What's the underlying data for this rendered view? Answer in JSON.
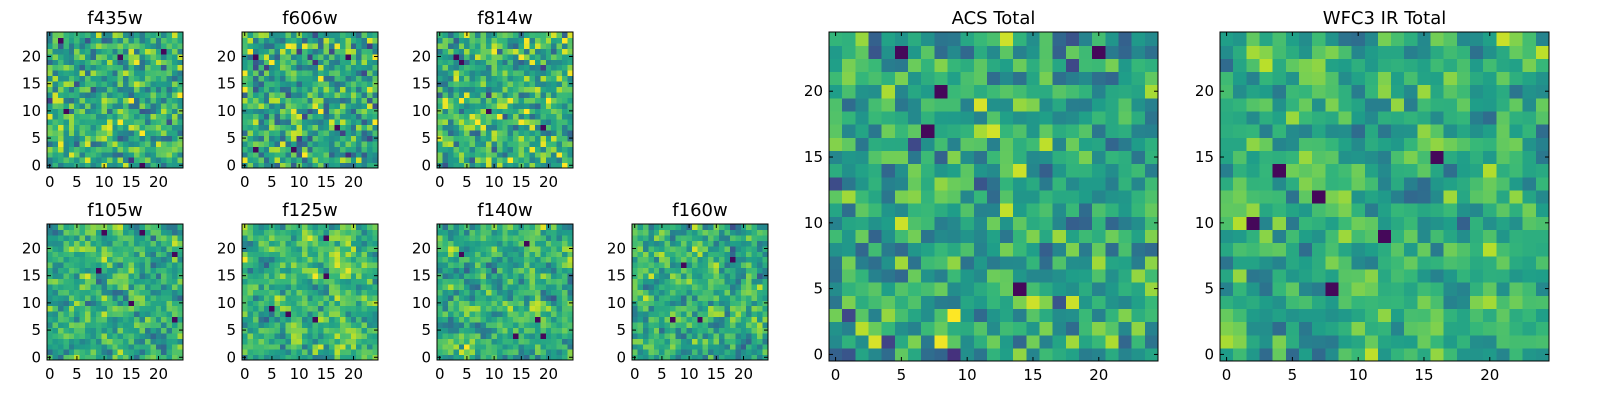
{
  "chart_data": {
    "type": "heatmap",
    "colormap": "viridis",
    "grid": false,
    "panels": [
      {
        "title": "f435w",
        "size": 25,
        "ylim": [
          0,
          24
        ],
        "xticks": [
          0,
          5,
          10,
          15,
          20
        ],
        "yticks": [
          0,
          5,
          10,
          15,
          20
        ],
        "seed": 11,
        "smooth": 0,
        "bias": 0.62,
        "contrast": 0.22
      },
      {
        "title": "f606w",
        "size": 25,
        "ylim": [
          0,
          24
        ],
        "xticks": [
          0,
          5,
          10,
          15,
          20
        ],
        "yticks": [
          0,
          5,
          10,
          15,
          20
        ],
        "seed": 23,
        "smooth": 0,
        "bias": 0.6,
        "contrast": 0.24
      },
      {
        "title": "f814w",
        "size": 25,
        "ylim": [
          0,
          24
        ],
        "xticks": [
          0,
          5,
          10,
          15,
          20
        ],
        "yticks": [
          0,
          5,
          10,
          15,
          20
        ],
        "seed": 37,
        "smooth": 0,
        "bias": 0.64,
        "contrast": 0.22
      },
      {
        "title": "f105w",
        "size": 25,
        "ylim": [
          0,
          24
        ],
        "xticks": [
          0,
          5,
          10,
          15,
          20
        ],
        "yticks": [
          0,
          5,
          10,
          15,
          20
        ],
        "seed": 41,
        "smooth": 1,
        "bias": 0.62,
        "contrast": 0.26
      },
      {
        "title": "f125w",
        "size": 25,
        "ylim": [
          0,
          24
        ],
        "xticks": [
          0,
          5,
          10,
          15,
          20
        ],
        "yticks": [
          0,
          5,
          10,
          15,
          20
        ],
        "seed": 53,
        "smooth": 1,
        "bias": 0.66,
        "contrast": 0.26
      },
      {
        "title": "f140w",
        "size": 25,
        "ylim": [
          0,
          24
        ],
        "xticks": [
          0,
          5,
          10,
          15,
          20
        ],
        "yticks": [
          0,
          5,
          10,
          15,
          20
        ],
        "seed": 67,
        "smooth": 1,
        "bias": 0.64,
        "contrast": 0.26
      },
      {
        "title": "f160w",
        "size": 25,
        "ylim": [
          0,
          24
        ],
        "xticks": [
          0,
          5,
          10,
          15,
          20
        ],
        "yticks": [
          0,
          5,
          10,
          15,
          20
        ],
        "seed": 79,
        "smooth": 1,
        "bias": 0.62,
        "contrast": 0.28
      },
      {
        "title": "ACS Total",
        "size": 25,
        "ylim": [
          0,
          24
        ],
        "xticks": [
          0,
          5,
          10,
          15,
          20
        ],
        "yticks": [
          0,
          5,
          10,
          15,
          20
        ],
        "seed": 97,
        "smooth": 0,
        "bias": 0.58,
        "contrast": 0.2
      },
      {
        "title": "WFC3 IR Total",
        "size": 25,
        "ylim": [
          0,
          24
        ],
        "xticks": [
          0,
          5,
          10,
          15,
          20
        ],
        "yticks": [
          0,
          5,
          10,
          15,
          20
        ],
        "seed": 113,
        "smooth": 1,
        "bias": 0.62,
        "contrast": 0.26
      }
    ]
  }
}
